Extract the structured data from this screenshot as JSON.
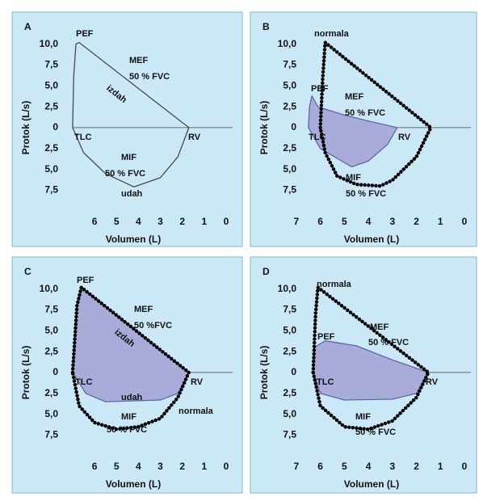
{
  "chart_data": [
    {
      "type": "line",
      "title": "A",
      "x_label": "Volumen  (L)",
      "y_label": "Protok  (L/s)",
      "xlim": [
        8.1,
        0
      ],
      "xticks": [
        6,
        5,
        4,
        3,
        2,
        1,
        0
      ],
      "ylim": [
        -12.3,
        11.9
      ],
      "yticks": [
        {
          "value": 10,
          "label": "10,0"
        },
        {
          "value": 7.5,
          "label": "7,5"
        },
        {
          "value": 5,
          "label": "5,0"
        },
        {
          "value": 2.5,
          "label": "2,5"
        },
        0,
        {
          "value": -2.5,
          "label": "2,5"
        },
        {
          "value": -5,
          "label": "5,0"
        },
        {
          "value": -7.5,
          "label": "7,5"
        }
      ],
      "series": [
        {
          "color": "#4a4a4a",
          "fill": null,
          "marker": "none",
          "x": [
            7,
            6.95,
            6.85,
            6.7,
            1.7,
            2.2,
            3,
            4.2,
            5.5,
            6.5,
            7
          ],
          "values": [
            0,
            6,
            10,
            10.2,
            0,
            -3.5,
            -6,
            -7.1,
            -5.5,
            -3,
            0
          ]
        }
      ],
      "annotations": [
        "PEF",
        "MEF",
        "50 % FVC",
        "izdah",
        "TLC",
        "RV",
        "MIF",
        "50 % FVC",
        "udah"
      ]
    },
    {
      "type": "line",
      "title": "B",
      "x_label": "Volumen  (L)",
      "y_label": "Protok  (L/s)",
      "xlim": [
        7.4,
        0
      ],
      "xticks": [
        7,
        6,
        5,
        4,
        3,
        2,
        1,
        0
      ],
      "ylim": [
        -12.3,
        11.9
      ],
      "yticks": [
        {
          "value": 10,
          "label": "10,0"
        },
        {
          "value": 7.5,
          "label": "7,5"
        },
        {
          "value": 5,
          "label": "5,0"
        },
        {
          "value": 2.5,
          "label": "2,5"
        },
        0,
        {
          "value": -2.5,
          "label": "2,5"
        },
        {
          "value": -5,
          "label": "5,0"
        },
        {
          "value": -7.5,
          "label": "7,5"
        }
      ],
      "series": [
        {
          "color": "#6066a8",
          "fill": "#a9abd9",
          "marker": "none",
          "x": [
            6.5,
            6.45,
            6.35,
            6.1,
            5,
            4,
            2.8,
            3.2,
            4,
            4.7,
            6,
            6.5
          ],
          "values": [
            0,
            2.5,
            3.8,
            2.5,
            1.5,
            0.8,
            0,
            -2,
            -4,
            -4.7,
            -2.5,
            0
          ]
        },
        {
          "color": "#000000",
          "fill": null,
          "marker": "beads",
          "x": [
            6.0,
            5.9,
            5.8,
            1.4,
            2,
            3,
            3.5,
            4.5,
            5.3,
            5.8,
            6.0
          ],
          "values": [
            0,
            6,
            10.2,
            0,
            -3.5,
            -6.3,
            -7,
            -6.8,
            -5.8,
            -3,
            0
          ]
        }
      ],
      "annotations": [
        "normala",
        "PEF",
        "MEF",
        "50 % FVC",
        "TLC",
        "RV",
        "MIF",
        "50 % FVC"
      ]
    },
    {
      "type": "line",
      "title": "C",
      "x_label": "Volumen  (L)",
      "y_label": "Protok  (L/s)",
      "xlim": [
        8.1,
        0
      ],
      "xticks": [
        6,
        5,
        4,
        3,
        2,
        1,
        0
      ],
      "ylim": [
        -12.3,
        11.9
      ],
      "yticks": [
        {
          "value": 10,
          "label": "10,0"
        },
        {
          "value": 7.5,
          "label": "7,5"
        },
        {
          "value": 5,
          "label": "5,0"
        },
        {
          "value": 2.5,
          "label": "2,5"
        },
        0,
        {
          "value": -2.5,
          "label": "2,5"
        },
        {
          "value": -5,
          "label": "5,0"
        },
        {
          "value": -7.5,
          "label": "7,5"
        }
      ],
      "series": [
        {
          "color": "#6066a8",
          "fill": "#a9abd9",
          "marker": "none",
          "x": [
            7,
            6.8,
            6.6,
            1.7,
            2.2,
            3,
            5.5,
            6.4,
            7
          ],
          "values": [
            0,
            8,
            10.2,
            0,
            -2.5,
            -3.3,
            -3.5,
            -2.5,
            0
          ]
        },
        {
          "color": "#000000",
          "fill": null,
          "marker": "beads",
          "x": [
            7,
            6.8,
            6.6,
            1.7,
            2.2,
            3,
            4,
            5,
            6,
            6.7,
            7
          ],
          "values": [
            0,
            8,
            10.2,
            0,
            -3,
            -5.5,
            -6.5,
            -6.8,
            -6,
            -4,
            0
          ]
        }
      ],
      "annotations": [
        "PEF",
        "MEF",
        "50 %FVC",
        "izdah",
        "TLC",
        "RV",
        "udah",
        "MIF",
        "normala",
        "50 % FVC"
      ]
    },
    {
      "type": "line",
      "title": "D",
      "x_label": "Volumen  (L)",
      "y_label": "Protok  (L/s)",
      "xlim": [
        7.4,
        0
      ],
      "xticks": [
        7,
        6,
        5,
        4,
        3,
        2,
        1,
        0
      ],
      "ylim": [
        -12.3,
        11.9
      ],
      "yticks": [
        {
          "value": 10,
          "label": "10,0"
        },
        {
          "value": 7.5,
          "label": "7,5"
        },
        {
          "value": 5,
          "label": "5,0"
        },
        {
          "value": 2.5,
          "label": "2,5"
        },
        0,
        {
          "value": -2.5,
          "label": "2,5"
        },
        {
          "value": -5,
          "label": "5,0"
        },
        {
          "value": -7.5,
          "label": "7,5"
        }
      ],
      "series": [
        {
          "color": "#6066a8",
          "fill": "#a9abd9",
          "marker": "none",
          "x": [
            6.3,
            6.25,
            5.8,
            4.5,
            3,
            1.5,
            2,
            3,
            5,
            6,
            6.3
          ],
          "values": [
            0,
            3,
            3.8,
            3.2,
            1.5,
            0,
            -2.5,
            -3.2,
            -3.3,
            -2.5,
            0
          ]
        },
        {
          "color": "#000000",
          "fill": null,
          "marker": "beads",
          "x": [
            6.3,
            6.2,
            6.1,
            1.5,
            2,
            3,
            4,
            5,
            6,
            6.3
          ],
          "values": [
            0,
            7,
            10.2,
            0,
            -3,
            -5.8,
            -6.8,
            -6.5,
            -4,
            0
          ]
        }
      ],
      "annotations": [
        "normala",
        "MEF",
        "PEF",
        "50 % FVC",
        "TLC",
        "RV",
        "MIF",
        "50 % FVC"
      ]
    }
  ]
}
